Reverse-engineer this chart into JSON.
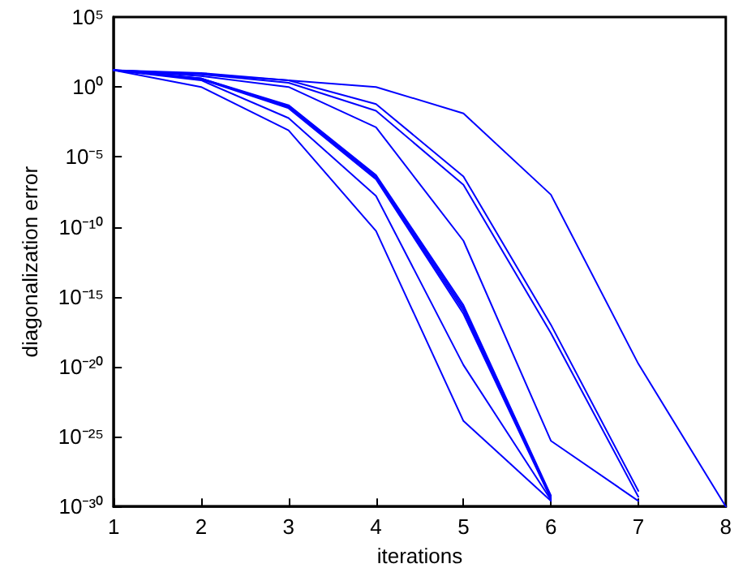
{
  "chart_data": {
    "type": "line",
    "xlabel": "iterations",
    "ylabel": "diagonalization error",
    "x": [
      1,
      2,
      3,
      4,
      5,
      6,
      7,
      8
    ],
    "xlim": [
      1,
      8
    ],
    "xticks": [
      1,
      2,
      3,
      4,
      5,
      6,
      7,
      8
    ],
    "ylim": [
      1e-30,
      100000
    ],
    "log": true,
    "yticks": [
      {
        "value": 1e-30,
        "label": "10⁻³⁰"
      },
      {
        "value": 1e-25,
        "label": "10⁻²⁵"
      },
      {
        "value": 1e-20,
        "label": "10⁻²⁰"
      },
      {
        "value": 1e-15,
        "label": "10⁻¹⁵"
      },
      {
        "value": 1e-10,
        "label": "10⁻¹⁰"
      },
      {
        "value": 1e-05,
        "label": "10⁻⁵"
      },
      {
        "value": 1,
        "label": "10⁰"
      },
      {
        "value": 100000,
        "label": "10⁵"
      }
    ],
    "grid": false,
    "marker": "none",
    "line_style": "solid",
    "series": [
      {
        "color": "#0000ff",
        "values": [
          16,
          10,
          3,
          1,
          0.013,
          2e-08,
          1.6e-20,
          1e-30
        ]
      },
      {
        "color": "#0000ff",
        "values": [
          16,
          8,
          3,
          0.06,
          4e-07,
          1e-17,
          1.3e-29,
          null
        ]
      },
      {
        "color": "#0000ff",
        "values": [
          16,
          8,
          2,
          0.02,
          1e-07,
          2.5e-18,
          5e-30,
          null
        ]
      },
      {
        "color": "#0000ff",
        "values": [
          16,
          6,
          1,
          0.0013,
          1e-11,
          5e-26,
          2.5e-30,
          null
        ]
      },
      {
        "color": "#0000ff",
        "values": [
          16,
          4,
          0.05,
          5e-07,
          2.5e-16,
          6e-30,
          null,
          null
        ]
      },
      {
        "color": "#0000ff",
        "values": [
          16,
          4,
          0.04,
          4e-07,
          1.6e-16,
          5e-30,
          null,
          null
        ]
      },
      {
        "color": "#0000ff",
        "values": [
          16,
          4,
          0.035,
          3e-07,
          1e-16,
          4e-30,
          null,
          null
        ]
      },
      {
        "color": "#0000ff",
        "values": [
          16,
          3.5,
          0.03,
          2.5e-07,
          6e-17,
          3.5e-30,
          null,
          null
        ]
      },
      {
        "color": "#0000ff",
        "values": [
          16,
          3,
          0.006,
          1.6e-08,
          1.3e-20,
          3e-30,
          null,
          null
        ]
      },
      {
        "color": "#0000ff",
        "values": [
          16,
          1,
          0.0008,
          5e-11,
          1.3e-24,
          2.5e-30,
          null,
          null
        ]
      }
    ]
  }
}
